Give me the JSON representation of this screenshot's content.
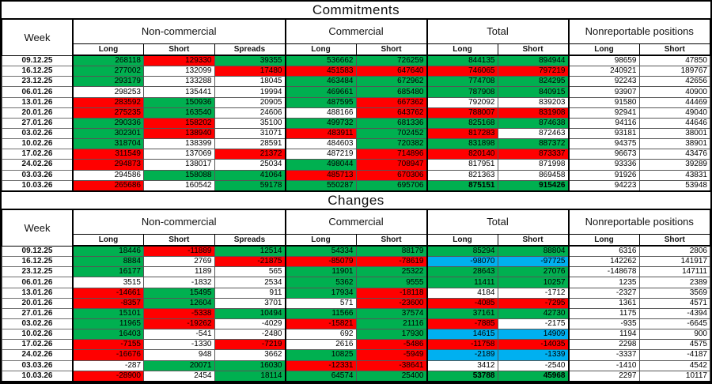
{
  "colors": {
    "positive": "#00B050",
    "negative": "#FF0000",
    "extreme": "#00B0F0",
    "neutral": "#FFFFFF",
    "grid": "#000000"
  },
  "columns": {
    "week_label": "Week",
    "groups": [
      {
        "label": "Non-commercial",
        "cols": [
          "Long",
          "Short",
          "Spreads"
        ]
      },
      {
        "label": "Commercial",
        "cols": [
          "Long",
          "Short"
        ]
      },
      {
        "label": "Total",
        "cols": [
          "Long",
          "Short"
        ]
      },
      {
        "label": "Nonreportable positions",
        "cols": [
          "Long",
          "Short"
        ]
      }
    ]
  },
  "sections": [
    {
      "title": "Commitments",
      "rows": [
        {
          "week": "09.12.25",
          "cells": [
            [
              "268118",
              "g"
            ],
            [
              "129330",
              "r"
            ],
            [
              "39355",
              "g"
            ],
            [
              "536662",
              "g"
            ],
            [
              "726259",
              "g"
            ],
            [
              "844135",
              "g"
            ],
            [
              "894944",
              "g"
            ],
            [
              "98659",
              "w"
            ],
            [
              "47850",
              "w"
            ]
          ]
        },
        {
          "week": "16.12.25",
          "cells": [
            [
              "277002",
              "g"
            ],
            [
              "132099",
              "w"
            ],
            [
              "17480",
              "r"
            ],
            [
              "451583",
              "r"
            ],
            [
              "647640",
              "r"
            ],
            [
              "746065",
              "r"
            ],
            [
              "797219",
              "r"
            ],
            [
              "240921",
              "w"
            ],
            [
              "189767",
              "w"
            ]
          ]
        },
        {
          "week": "23.12.25",
          "cells": [
            [
              "293179",
              "g"
            ],
            [
              "133288",
              "w"
            ],
            [
              "18045",
              "w"
            ],
            [
              "463484",
              "g"
            ],
            [
              "672962",
              "g"
            ],
            [
              "774708",
              "g"
            ],
            [
              "824295",
              "g"
            ],
            [
              "92243",
              "w"
            ],
            [
              "42656",
              "w"
            ]
          ]
        },
        {
          "week": "06.01.26",
          "cells": [
            [
              "298253",
              "w"
            ],
            [
              "135441",
              "w"
            ],
            [
              "19994",
              "w"
            ],
            [
              "469661",
              "g"
            ],
            [
              "685480",
              "g"
            ],
            [
              "787908",
              "g"
            ],
            [
              "840915",
              "g"
            ],
            [
              "93907",
              "w"
            ],
            [
              "40900",
              "w"
            ]
          ]
        },
        {
          "week": "13.01.26",
          "cells": [
            [
              "283592",
              "r"
            ],
            [
              "150936",
              "g"
            ],
            [
              "20905",
              "w"
            ],
            [
              "487595",
              "g"
            ],
            [
              "667362",
              "r"
            ],
            [
              "792092",
              "w"
            ],
            [
              "839203",
              "w"
            ],
            [
              "91580",
              "w"
            ],
            [
              "44469",
              "w"
            ]
          ]
        },
        {
          "week": "20.01.26",
          "cells": [
            [
              "275235",
              "r"
            ],
            [
              "163540",
              "g"
            ],
            [
              "24606",
              "w"
            ],
            [
              "488166",
              "w"
            ],
            [
              "643762",
              "r"
            ],
            [
              "788007",
              "r"
            ],
            [
              "831908",
              "r"
            ],
            [
              "92941",
              "w"
            ],
            [
              "49040",
              "w"
            ]
          ]
        },
        {
          "week": "27.01.26",
          "cells": [
            [
              "290336",
              "g"
            ],
            [
              "158202",
              "r"
            ],
            [
              "35100",
              "w"
            ],
            [
              "499732",
              "g"
            ],
            [
              "681336",
              "g"
            ],
            [
              "825168",
              "g"
            ],
            [
              "874638",
              "g"
            ],
            [
              "94116",
              "w"
            ],
            [
              "44646",
              "w"
            ]
          ]
        },
        {
          "week": "03.02.26",
          "cells": [
            [
              "302301",
              "g"
            ],
            [
              "138940",
              "r"
            ],
            [
              "31071",
              "w"
            ],
            [
              "483911",
              "r"
            ],
            [
              "702452",
              "g"
            ],
            [
              "817283",
              "r"
            ],
            [
              "872463",
              "w"
            ],
            [
              "93181",
              "w"
            ],
            [
              "38001",
              "w"
            ]
          ]
        },
        {
          "week": "10.02.26",
          "cells": [
            [
              "318704",
              "g"
            ],
            [
              "138399",
              "w"
            ],
            [
              "28591",
              "w"
            ],
            [
              "484603",
              "w"
            ],
            [
              "720382",
              "g"
            ],
            [
              "831898",
              "g"
            ],
            [
              "887372",
              "g"
            ],
            [
              "94375",
              "w"
            ],
            [
              "38901",
              "w"
            ]
          ]
        },
        {
          "week": "17.02.26",
          "cells": [
            [
              "311549",
              "r"
            ],
            [
              "137069",
              "w"
            ],
            [
              "21372",
              "r"
            ],
            [
              "487219",
              "w"
            ],
            [
              "714896",
              "r"
            ],
            [
              "820140",
              "r"
            ],
            [
              "873337",
              "r"
            ],
            [
              "96673",
              "w"
            ],
            [
              "43476",
              "w"
            ]
          ]
        },
        {
          "week": "24.02.26",
          "cells": [
            [
              "294873",
              "r"
            ],
            [
              "138017",
              "w"
            ],
            [
              "25034",
              "w"
            ],
            [
              "498044",
              "g"
            ],
            [
              "708947",
              "r"
            ],
            [
              "817951",
              "w"
            ],
            [
              "871998",
              "w"
            ],
            [
              "93336",
              "w"
            ],
            [
              "39289",
              "w"
            ]
          ]
        },
        {
          "week": "03.03.26",
          "cells": [
            [
              "294586",
              "w"
            ],
            [
              "158088",
              "g"
            ],
            [
              "41064",
              "g"
            ],
            [
              "485713",
              "r"
            ],
            [
              "670306",
              "r"
            ],
            [
              "821363",
              "w"
            ],
            [
              "869458",
              "w"
            ],
            [
              "91926",
              "w"
            ],
            [
              "43831",
              "w"
            ]
          ]
        },
        {
          "week": "10.03.26",
          "cells": [
            [
              "265686",
              "r"
            ],
            [
              "160542",
              "w"
            ],
            [
              "59178",
              "g"
            ],
            [
              "550287",
              "g"
            ],
            [
              "695706",
              "g"
            ],
            [
              "875151",
              "g",
              "b"
            ],
            [
              "915426",
              "g",
              "b"
            ],
            [
              "94223",
              "w"
            ],
            [
              "53948",
              "w"
            ]
          ]
        }
      ]
    },
    {
      "title": "Changes",
      "rows": [
        {
          "week": "09.12.25",
          "cells": [
            [
              "18446",
              "g"
            ],
            [
              "-11889",
              "r"
            ],
            [
              "12514",
              "g"
            ],
            [
              "54334",
              "g"
            ],
            [
              "88179",
              "g"
            ],
            [
              "85294",
              "g"
            ],
            [
              "88804",
              "g"
            ],
            [
              "6316",
              "w"
            ],
            [
              "2806",
              "w"
            ]
          ]
        },
        {
          "week": "16.12.25",
          "cells": [
            [
              "8884",
              "g"
            ],
            [
              "2769",
              "w"
            ],
            [
              "-21875",
              "r"
            ],
            [
              "-85079",
              "r"
            ],
            [
              "-78619",
              "r"
            ],
            [
              "-98070",
              "u"
            ],
            [
              "-97725",
              "u"
            ],
            [
              "142262",
              "w"
            ],
            [
              "141917",
              "w"
            ]
          ]
        },
        {
          "week": "23.12.25",
          "cells": [
            [
              "16177",
              "g"
            ],
            [
              "1189",
              "w"
            ],
            [
              "565",
              "w"
            ],
            [
              "11901",
              "g"
            ],
            [
              "25322",
              "g"
            ],
            [
              "28643",
              "g"
            ],
            [
              "27076",
              "g"
            ],
            [
              "-148678",
              "w"
            ],
            [
              "147111",
              "w"
            ]
          ]
        },
        {
          "week": "06.01.26",
          "cells": [
            [
              "3515",
              "w"
            ],
            [
              "-1832",
              "w"
            ],
            [
              "2534",
              "w"
            ],
            [
              "5362",
              "g"
            ],
            [
              "9555",
              "g"
            ],
            [
              "11411",
              "g"
            ],
            [
              "10257",
              "g"
            ],
            [
              "1235",
              "w"
            ],
            [
              "2389",
              "w"
            ]
          ]
        },
        {
          "week": "13.01.26",
          "cells": [
            [
              "-14661",
              "r"
            ],
            [
              "15495",
              "g"
            ],
            [
              "911",
              "w"
            ],
            [
              "17934",
              "g"
            ],
            [
              "-18118",
              "r"
            ],
            [
              "4184",
              "w"
            ],
            [
              "-1712",
              "w"
            ],
            [
              "-2327",
              "w"
            ],
            [
              "3569",
              "w"
            ]
          ]
        },
        {
          "week": "20.01.26",
          "cells": [
            [
              "-8357",
              "r"
            ],
            [
              "12604",
              "g"
            ],
            [
              "3701",
              "w"
            ],
            [
              "571",
              "w"
            ],
            [
              "-23600",
              "r"
            ],
            [
              "-4085",
              "r"
            ],
            [
              "-7295",
              "r"
            ],
            [
              "1361",
              "w"
            ],
            [
              "4571",
              "w"
            ]
          ]
        },
        {
          "week": "27.01.26",
          "cells": [
            [
              "15101",
              "g"
            ],
            [
              "-5338",
              "r"
            ],
            [
              "10494",
              "g"
            ],
            [
              "11566",
              "g"
            ],
            [
              "37574",
              "g"
            ],
            [
              "37161",
              "g"
            ],
            [
              "42730",
              "g"
            ],
            [
              "1175",
              "w"
            ],
            [
              "-4394",
              "w"
            ]
          ]
        },
        {
          "week": "03.02.26",
          "cells": [
            [
              "11965",
              "g"
            ],
            [
              "-19262",
              "r"
            ],
            [
              "-4029",
              "w"
            ],
            [
              "-15821",
              "r"
            ],
            [
              "21116",
              "g"
            ],
            [
              "-7885",
              "r"
            ],
            [
              "-2175",
              "w"
            ],
            [
              "-935",
              "w"
            ],
            [
              "-6645",
              "w"
            ]
          ]
        },
        {
          "week": "10.02.26",
          "cells": [
            [
              "16403",
              "g"
            ],
            [
              "-541",
              "w"
            ],
            [
              "-2480",
              "w"
            ],
            [
              "692",
              "w"
            ],
            [
              "17930",
              "g"
            ],
            [
              "14615",
              "u"
            ],
            [
              "14909",
              "u"
            ],
            [
              "1194",
              "w"
            ],
            [
              "900",
              "w"
            ]
          ]
        },
        {
          "week": "17.02.26",
          "cells": [
            [
              "-7155",
              "r"
            ],
            [
              "-1330",
              "w"
            ],
            [
              "-7219",
              "r"
            ],
            [
              "2616",
              "w"
            ],
            [
              "-5486",
              "r"
            ],
            [
              "-11758",
              "r"
            ],
            [
              "-14035",
              "r"
            ],
            [
              "2298",
              "w"
            ],
            [
              "4575",
              "w"
            ]
          ]
        },
        {
          "week": "24.02.26",
          "cells": [
            [
              "-16676",
              "r"
            ],
            [
              "948",
              "w"
            ],
            [
              "3662",
              "w"
            ],
            [
              "10825",
              "g"
            ],
            [
              "-5949",
              "r"
            ],
            [
              "-2189",
              "u"
            ],
            [
              "-1339",
              "u"
            ],
            [
              "-3337",
              "w"
            ],
            [
              "-4187",
              "w"
            ]
          ]
        },
        {
          "week": "03.03.26",
          "cells": [
            [
              "-287",
              "w"
            ],
            [
              "20071",
              "g"
            ],
            [
              "16030",
              "g"
            ],
            [
              "-12331",
              "r"
            ],
            [
              "-38641",
              "r"
            ],
            [
              "3412",
              "w"
            ],
            [
              "-2540",
              "w"
            ],
            [
              "-1410",
              "w"
            ],
            [
              "4542",
              "w"
            ]
          ]
        },
        {
          "week": "10.03.26",
          "cells": [
            [
              "-28900",
              "r"
            ],
            [
              "2454",
              "w"
            ],
            [
              "18114",
              "g"
            ],
            [
              "64574",
              "g"
            ],
            [
              "25400",
              "g"
            ],
            [
              "53788",
              "g",
              "b"
            ],
            [
              "45968",
              "g",
              "b"
            ],
            [
              "2297",
              "w"
            ],
            [
              "10117",
              "w"
            ]
          ]
        }
      ]
    }
  ]
}
